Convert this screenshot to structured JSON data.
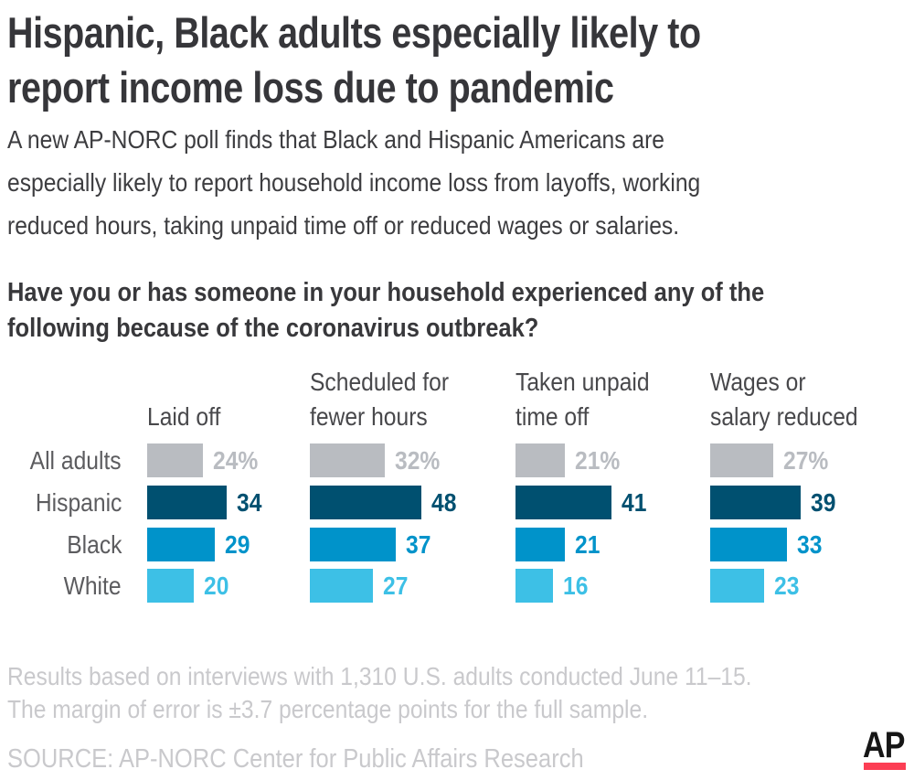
{
  "header": {
    "title_lines": [
      "Hispanic, Black adults especially likely to",
      "report income loss due to pandemic"
    ],
    "subtitle_lines": [
      "A new AP-NORC poll finds that Black and Hispanic Americans are",
      "especially likely to report household income loss from layoffs, working",
      "reduced hours, taking unpaid time off or reduced wages or salaries."
    ]
  },
  "question_lines": [
    "Have you or has someone in your household experienced any of the",
    "following because of the coronavirus outbreak?"
  ],
  "chart_data": {
    "type": "bar",
    "orientation": "horizontal",
    "title": "Have you or has someone in your household experienced any of the following because of the coronavirus outbreak?",
    "categories": [
      "All adults",
      "Hispanic",
      "Black",
      "White"
    ],
    "category_colors": [
      "#b9bcc1",
      "#005070",
      "#0093ca",
      "#3dc0e6"
    ],
    "column_headers": [
      [
        "Laid off"
      ],
      [
        "Scheduled for",
        "fewer hours"
      ],
      [
        "Taken unpaid",
        "time off"
      ],
      [
        "Wages or",
        "salary reduced"
      ]
    ],
    "series": [
      {
        "name": "Laid off",
        "values": [
          24,
          34,
          29,
          20
        ],
        "labels": [
          "24%",
          "34",
          "29",
          "20"
        ]
      },
      {
        "name": "Scheduled for fewer hours",
        "values": [
          32,
          48,
          37,
          27
        ],
        "labels": [
          "32%",
          "48",
          "37",
          "27"
        ]
      },
      {
        "name": "Taken unpaid time off",
        "values": [
          21,
          41,
          21,
          16
        ],
        "labels": [
          "21%",
          "41",
          "21",
          "16"
        ]
      },
      {
        "name": "Wages or salary reduced",
        "values": [
          27,
          39,
          33,
          23
        ],
        "labels": [
          "27%",
          "39",
          "33",
          "23"
        ]
      }
    ],
    "xlim": [
      0,
      50
    ],
    "grid": false,
    "legend": "none",
    "value_labels_shown": true
  },
  "footnote_lines": [
    "Results based on interviews with 1,310 U.S. adults conducted June 11–15.",
    "The margin of error is ±3.7 percentage points for the full sample."
  ],
  "source": "SOURCE: AP-NORC Center for Public Affairs Research",
  "logo": {
    "text": "AP",
    "underline_color": "#fc3e54"
  }
}
